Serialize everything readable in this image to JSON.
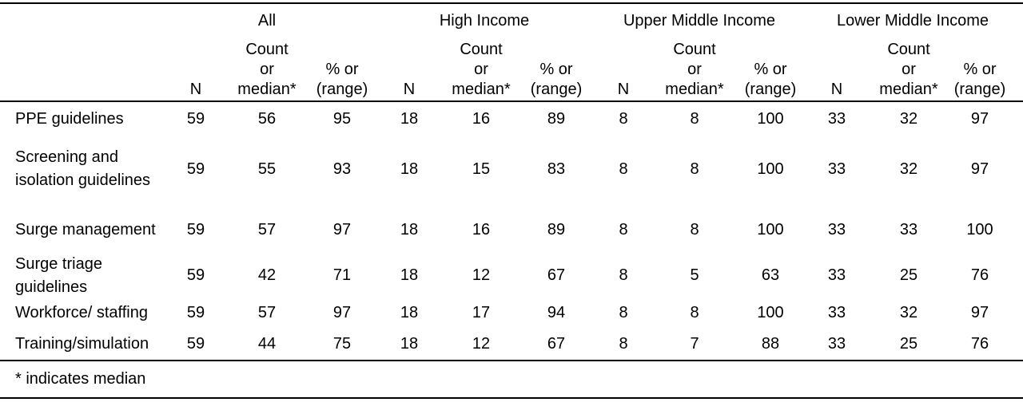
{
  "table": {
    "groups": [
      "All",
      "High Income",
      "Upper Middle Income",
      "Lower Middle Income"
    ],
    "subheaders": [
      "N",
      "Count\nor\nmedian*",
      "% or\n(range)"
    ],
    "rows": [
      {
        "label": "PPE guidelines",
        "values": [
          "59",
          "56",
          "95",
          "18",
          "16",
          "89",
          "8",
          "8",
          "100",
          "33",
          "32",
          "97"
        ]
      },
      {
        "label": "Screening and isolation guidelines",
        "values": [
          "59",
          "55",
          "93",
          "18",
          "15",
          "83",
          "8",
          "8",
          "100",
          "33",
          "32",
          "97"
        ]
      },
      {
        "label": "Surge management",
        "values": [
          "59",
          "57",
          "97",
          "18",
          "16",
          "89",
          "8",
          "8",
          "100",
          "33",
          "33",
          "100"
        ]
      },
      {
        "label": "Surge triage guidelines",
        "values": [
          "59",
          "42",
          "71",
          "18",
          "12",
          "67",
          "8",
          "5",
          "63",
          "33",
          "25",
          "76"
        ]
      },
      {
        "label": "Workforce/ staffing",
        "values": [
          "59",
          "57",
          "97",
          "18",
          "17",
          "94",
          "8",
          "8",
          "100",
          "33",
          "32",
          "97"
        ]
      },
      {
        "label": "Training/simulation",
        "values": [
          "59",
          "44",
          "75",
          "18",
          "12",
          "67",
          "8",
          "7",
          "88",
          "33",
          "25",
          "76"
        ]
      }
    ],
    "footnote": "* indicates median"
  }
}
